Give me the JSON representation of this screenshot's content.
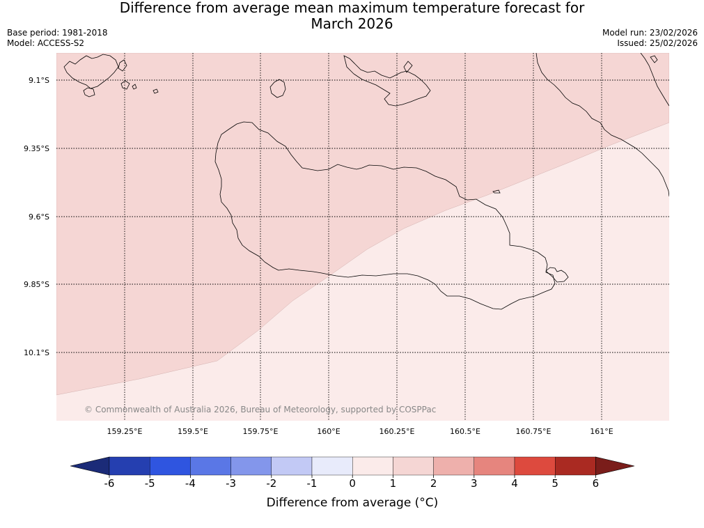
{
  "title": {
    "line1": "Difference from average mean maximum temperature forecast for",
    "line2": "March 2026"
  },
  "meta": {
    "base_period": "Base period: 1981-2018",
    "model": "Model: ACCESS-S2",
    "model_run": "Model run: 23/02/2026",
    "issued": "Issued: 25/02/2026"
  },
  "map": {
    "lat_labels": [
      "9.1°S",
      "9.35°S",
      "9.6°S",
      "9.85°S",
      "10.1°S"
    ],
    "lon_labels": [
      "159.25°E",
      "159.5°E",
      "159.75°E",
      "160°E",
      "160.25°E",
      "160.5°E",
      "160.75°E",
      "161°E"
    ],
    "copyright": "© Commonwealth of Australia 2026, Bureau of Meteorology, supported by COSPPac",
    "regions": [
      {
        "name": "anomaly 1 to 2 °C",
        "color": "#f5d6d4"
      },
      {
        "name": "anomaly 0 to 1 °C",
        "color": "#fbebea"
      }
    ]
  },
  "colorbar": {
    "ticks": [
      "-6",
      "-5",
      "-4",
      "-3",
      "-2",
      "-1",
      "0",
      "1",
      "2",
      "3",
      "4",
      "5",
      "6"
    ],
    "colors": [
      "#253fb0",
      "#2f55e0",
      "#5a77e6",
      "#8396eb",
      "#c2c9f5",
      "#e8ebfb",
      "#fbebea",
      "#f5d6d4",
      "#eeb0ac",
      "#e6857e",
      "#dd4a3e",
      "#aa2a22"
    ],
    "under_color": "#1b2b78",
    "over_color": "#7a1d1a",
    "label": "Difference from average (°C)"
  }
}
